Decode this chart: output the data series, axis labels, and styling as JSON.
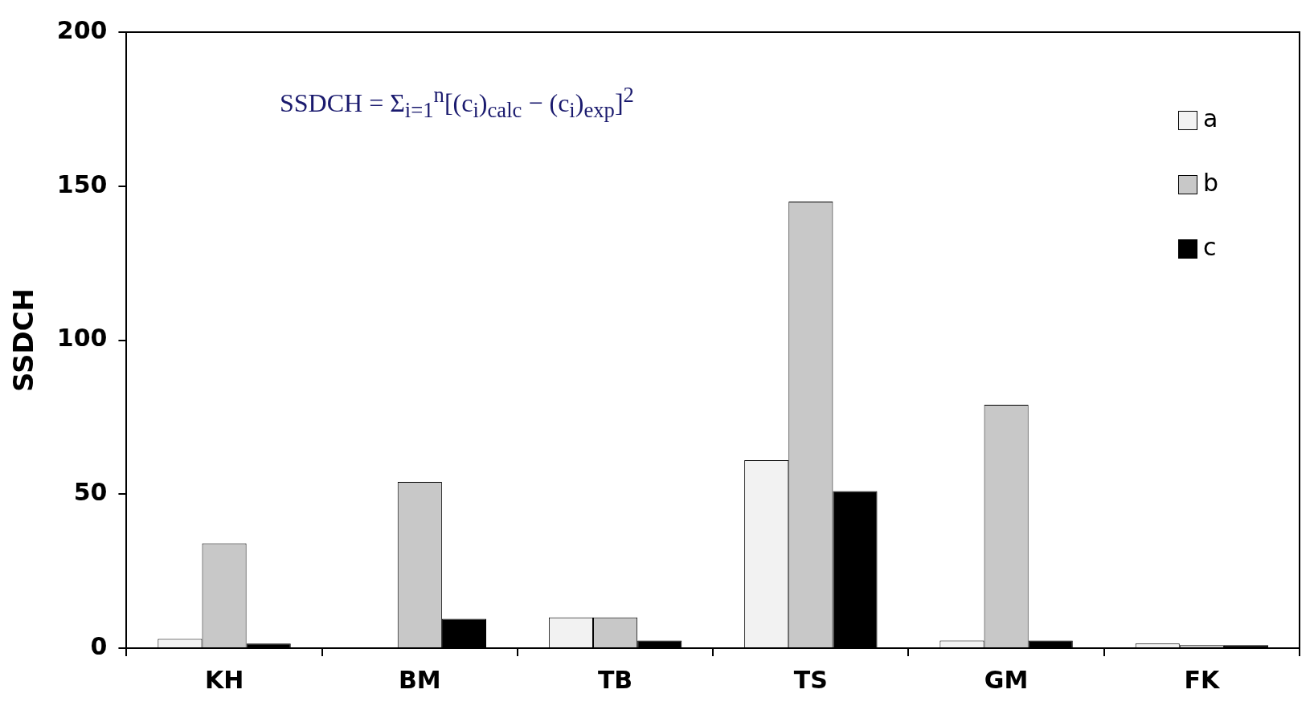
{
  "chart_data": {
    "type": "bar",
    "ylabel": "SSDCH",
    "categories": [
      "KH",
      "BM",
      "TB",
      "TS",
      "GM",
      "FK"
    ],
    "series": [
      {
        "name": "a",
        "color": "#f2f2f2",
        "values": [
          3,
          0,
          10,
          61,
          2.5,
          1.5
        ]
      },
      {
        "name": "b",
        "color": "#c8c8c8",
        "values": [
          34,
          54,
          10,
          145,
          79,
          1
        ]
      },
      {
        "name": "c",
        "color": "#000000",
        "values": [
          1.5,
          9.5,
          2.5,
          51,
          2.5,
          1
        ]
      }
    ],
    "ylim": [
      0,
      200
    ],
    "yticks": [
      0,
      50,
      100,
      150,
      200
    ],
    "legend": "top right",
    "annotations": [
      "SSDCH = Σ$_{i=1}$$^{n}$[(c$_{i}$)$_{calc}$ − (c$_{i}$)$_{exp}$]$^{2}$"
    ]
  }
}
